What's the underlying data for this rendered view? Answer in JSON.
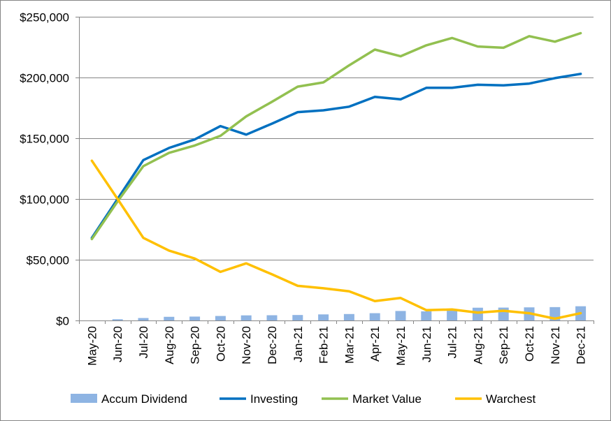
{
  "chart_data": {
    "type": "bar+line",
    "title": "",
    "xlabel": "",
    "ylabel": "",
    "categories": [
      "May-20",
      "Jun-20",
      "Jul-20",
      "Aug-20",
      "Sep-20",
      "Oct-20",
      "Nov-20",
      "Dec-20",
      "Jan-21",
      "Feb-21",
      "Mar-21",
      "Apr-21",
      "May-21",
      "Jun-21",
      "Jul-21",
      "Aug-21",
      "Sep-21",
      "Oct-21",
      "Nov-21",
      "Dec-21"
    ],
    "ylim": [
      0,
      250000
    ],
    "yticks": [
      0,
      50000,
      100000,
      150000,
      200000,
      250000
    ],
    "ytick_labels": [
      "$0",
      "$50,000",
      "$100,000",
      "$150,000",
      "$200,000",
      "$250,000"
    ],
    "grid": "horizontal",
    "legend_position": "bottom",
    "series": [
      {
        "name": "Accum Dividend",
        "kind": "bar",
        "color": "#8EB4E3",
        "values": [
          0,
          1000,
          2000,
          3000,
          3200,
          3700,
          4200,
          4300,
          4500,
          5000,
          5300,
          6000,
          7800,
          7500,
          8000,
          10500,
          10600,
          10800,
          11000,
          11700
        ]
      },
      {
        "name": "Investing",
        "kind": "line",
        "color": "#0070C0",
        "values": [
          68000,
          100000,
          132000,
          142000,
          149000,
          160000,
          153000,
          162000,
          171500,
          173000,
          176000,
          184000,
          182000,
          191500,
          191500,
          194000,
          193500,
          195000,
          199500,
          203000
        ]
      },
      {
        "name": "Market Value",
        "kind": "line",
        "color": "#92C050",
        "values": [
          67000,
          98000,
          127000,
          138000,
          144000,
          152000,
          168000,
          180000,
          192500,
          196000,
          210000,
          223000,
          217500,
          226500,
          232500,
          225500,
          224500,
          234000,
          229500,
          236500
        ]
      },
      {
        "name": "Warchest",
        "kind": "line",
        "color": "#FFC000",
        "values": [
          131500,
          100000,
          68000,
          57500,
          51000,
          40000,
          47000,
          38000,
          28500,
          26500,
          24000,
          16000,
          18500,
          8500,
          9000,
          6500,
          8000,
          6000,
          1500,
          6000
        ]
      }
    ]
  }
}
